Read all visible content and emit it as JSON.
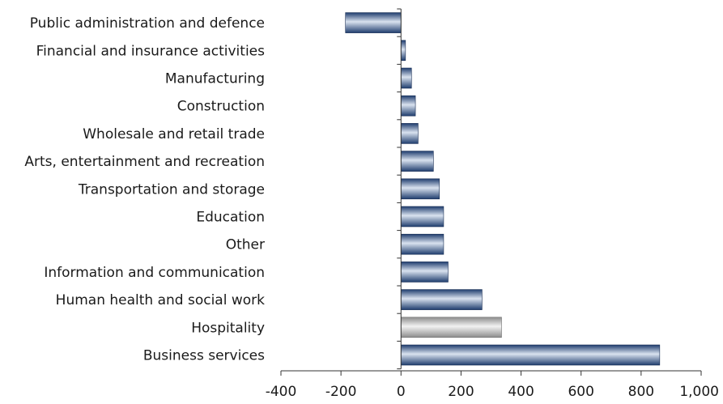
{
  "chart_data": {
    "type": "bar",
    "orientation": "horizontal",
    "title": "",
    "xlabel": "",
    "ylabel": "",
    "categories": [
      "Public administration and defence",
      "Financial and insurance activities",
      "Manufacturing",
      "Construction",
      "Wholesale and retail trade",
      "Arts, entertainment and recreation",
      "Transportation and storage",
      "Education",
      "Other",
      "Information and communication",
      "Human health and social work",
      "Hospitality",
      "Business services"
    ],
    "values": [
      -185,
      15,
      35,
      48,
      57,
      108,
      128,
      142,
      142,
      157,
      270,
      335,
      862
    ],
    "highlight_category": "Hospitality",
    "xlim": [
      -400,
      1000
    ],
    "xticks": [
      -400,
      -200,
      0,
      200,
      400,
      600,
      800,
      1000
    ],
    "xtick_labels": [
      "-400",
      "-200",
      "0",
      "200",
      "400",
      "600",
      "800",
      "1,000"
    ],
    "grid": false,
    "legend": "none",
    "colors": {
      "bar_dark": "#1f3d6e",
      "bar_light": "#d9e2ef",
      "highlight_dark": "#8c8c8c",
      "highlight_light": "#f2f2f2",
      "axis": "#333333"
    }
  }
}
